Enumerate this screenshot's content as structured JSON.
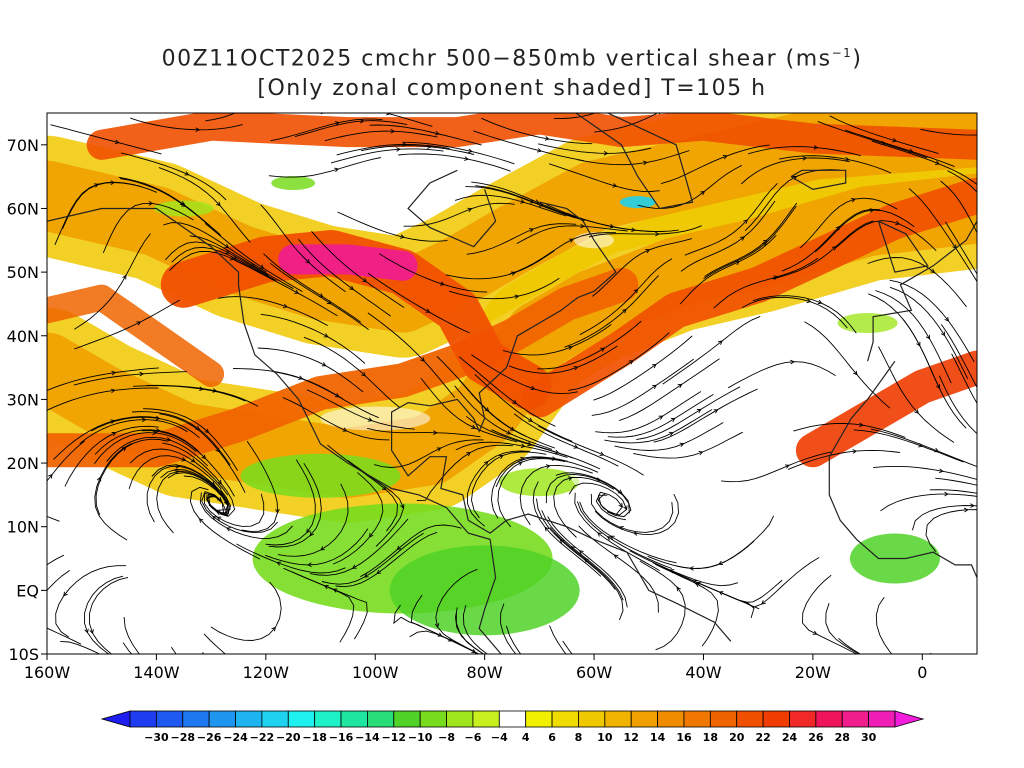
{
  "title": {
    "line1_prefix": "00Z11OCT2025 cmchr 500−850mb vertical shear (ms",
    "line1_sup": "−1",
    "line1_suffix": ")",
    "line2": "[Only zonal component shaded] T=105 h"
  },
  "axes": {
    "lat_labels": [
      "70N",
      "60N",
      "50N",
      "40N",
      "30N",
      "20N",
      "10N",
      "EQ",
      "10S"
    ],
    "lat_values": [
      70,
      60,
      50,
      40,
      30,
      20,
      10,
      0,
      -10
    ],
    "lon_labels": [
      "160W",
      "140W",
      "120W",
      "100W",
      "80W",
      "60W",
      "40W",
      "20W",
      "0"
    ],
    "lon_values": [
      -160,
      -140,
      -120,
      -100,
      -80,
      -60,
      -40,
      -20,
      0
    ],
    "lat_range": [
      -10,
      75
    ],
    "lon_range": [
      -160,
      10
    ]
  },
  "colorbar": {
    "labels": [
      "−30",
      "−28",
      "−26",
      "−24",
      "−22",
      "−20",
      "−18",
      "−16",
      "−14",
      "−12",
      "−10",
      "−8",
      "−6",
      "−4",
      "4",
      "6",
      "8",
      "10",
      "12",
      "14",
      "16",
      "18",
      "20",
      "22",
      "24",
      "26",
      "28",
      "30"
    ],
    "colors": [
      "#1e1ef0",
      "#1e3cf0",
      "#1e5af0",
      "#1e78f0",
      "#1e96f0",
      "#1eb4f0",
      "#1ed2f0",
      "#1ef0f0",
      "#1ef0c8",
      "#1ee6a0",
      "#28dc78",
      "#50d228",
      "#78dc1e",
      "#a0e61e",
      "#c8f01e",
      "#ffffff",
      "#f0f000",
      "#f0dc00",
      "#f0c800",
      "#f0b400",
      "#f0a000",
      "#f08c00",
      "#f07800",
      "#f06400",
      "#f05000",
      "#f03c00",
      "#f02828",
      "#f0145a",
      "#f01e8c",
      "#f01eb4",
      "#f01edc"
    ]
  },
  "shading_regions": [
    {
      "name": "north-pacific-jet",
      "sign": "positive"
    },
    {
      "name": "north-america-jet",
      "sign": "positive"
    },
    {
      "name": "north-atlantic-jet",
      "sign": "positive"
    },
    {
      "name": "subtropical-pacific-jet",
      "sign": "positive"
    },
    {
      "name": "tropical-easterlies",
      "sign": "negative"
    }
  ]
}
